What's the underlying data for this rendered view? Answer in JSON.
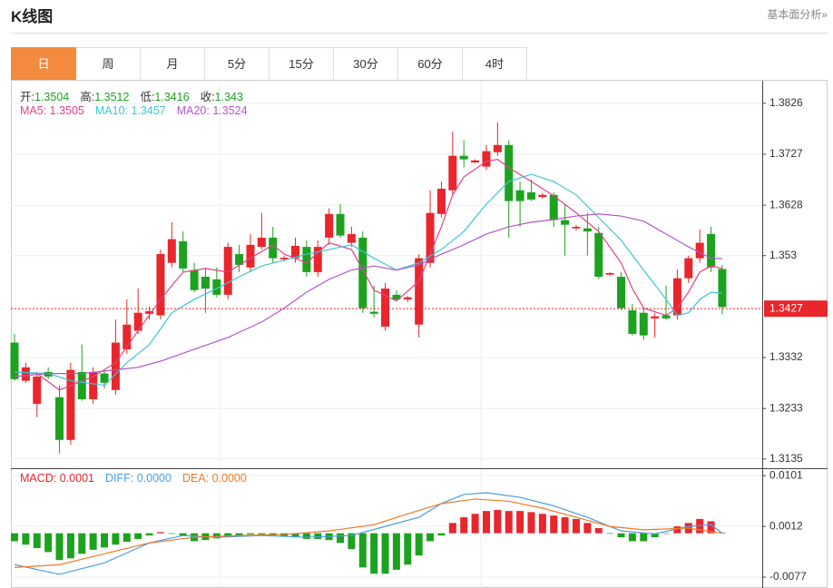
{
  "chart_data": {
    "type": "candlestick",
    "title": "K线图",
    "link": "基本面分析»",
    "tabs": [
      "日",
      "周",
      "月",
      "5分",
      "15分",
      "30分",
      "60分",
      "4时"
    ],
    "active_tab": 0,
    "ohlc_legend": [
      {
        "label": "开:",
        "value": 1.3504
      },
      {
        "label": "高:",
        "value": 1.3512
      },
      {
        "label": "低:",
        "value": 1.3416
      },
      {
        "label": "收:",
        "value": 1.343
      }
    ],
    "up_color": "#e8262c",
    "down_color": "#1da21f",
    "open": [
      1.3361,
      1.3287,
      1.3242,
      1.3304,
      1.3255,
      1.3172,
      1.3304,
      1.3251,
      1.3301,
      1.3269,
      1.3348,
      1.3384,
      1.3417,
      1.3414,
      1.3516,
      1.3558,
      1.3502,
      1.3489,
      1.3484,
      1.3454,
      1.3533,
      1.3507,
      1.3547,
      1.3565,
      1.3523,
      1.3525,
      1.3547,
      1.3498,
      1.3565,
      1.3611,
      1.3555,
      1.3565,
      1.3421,
      1.3392,
      1.3454,
      1.3445,
      1.3396,
      1.3516,
      1.3611,
      1.3657,
      1.3724,
      1.3711,
      1.3703,
      1.3731,
      1.3745,
      1.3657,
      1.3653,
      1.3644,
      1.3648,
      1.3599,
      1.3583,
      1.3583,
      1.3574,
      1.3493,
      1.3489,
      1.3424,
      1.3419,
      1.3408,
      1.3414,
      1.3414,
      1.3486,
      1.3525,
      1.3572,
      1.3504
    ],
    "high": [
      1.3378,
      1.3322,
      1.3304,
      1.3313,
      1.3278,
      1.3322,
      1.3357,
      1.3313,
      1.3308,
      1.3406,
      1.3445,
      1.3466,
      1.3431,
      1.3542,
      1.3595,
      1.3577,
      1.3516,
      1.3507,
      1.3507,
      1.3555,
      1.3551,
      1.3572,
      1.3613,
      1.3586,
      1.353,
      1.3565,
      1.356,
      1.356,
      1.3622,
      1.363,
      1.3586,
      1.3577,
      1.3472,
      1.3477,
      1.3463,
      1.3452,
      1.3533,
      1.3657,
      1.3674,
      1.3771,
      1.3754,
      1.3717,
      1.3745,
      1.3789,
      1.3754,
      1.3674,
      1.3678,
      1.3652,
      1.3653,
      1.363,
      1.359,
      1.3613,
      1.3586,
      1.3498,
      1.3498,
      1.3436,
      1.3428,
      1.3419,
      1.3472,
      1.3503,
      1.353,
      1.3581,
      1.3586,
      1.3512
    ],
    "low": [
      1.3287,
      1.3283,
      1.3216,
      1.329,
      1.3146,
      1.3163,
      1.3248,
      1.3242,
      1.3272,
      1.326,
      1.3339,
      1.3378,
      1.3406,
      1.3406,
      1.3507,
      1.3498,
      1.3459,
      1.3419,
      1.3449,
      1.3445,
      1.3498,
      1.3498,
      1.3542,
      1.3516,
      1.3519,
      1.3516,
      1.3489,
      1.3489,
      1.3551,
      1.3565,
      1.3547,
      1.3419,
      1.341,
      1.3384,
      1.3442,
      1.344,
      1.3371,
      1.3507,
      1.3604,
      1.3648,
      1.3701,
      1.371,
      1.3696,
      1.3724,
      1.3565,
      1.3586,
      1.3636,
      1.3641,
      1.3586,
      1.353,
      1.3579,
      1.353,
      1.3484,
      1.3491,
      1.3424,
      1.3375,
      1.3366,
      1.3371,
      1.3405,
      1.3406,
      1.3477,
      1.3516,
      1.3498,
      1.3416
    ],
    "close": [
      1.329,
      1.3313,
      1.3295,
      1.3295,
      1.3172,
      1.3308,
      1.3251,
      1.3304,
      1.3283,
      1.3361,
      1.3396,
      1.3419,
      1.3422,
      1.3533,
      1.3562,
      1.3505,
      1.3463,
      1.3466,
      1.3454,
      1.3547,
      1.3512,
      1.3551,
      1.3565,
      1.3525,
      1.3526,
      1.3549,
      1.3498,
      1.3547,
      1.3611,
      1.3569,
      1.3572,
      1.3428,
      1.3417,
      1.3466,
      1.3445,
      1.3449,
      1.3525,
      1.3613,
      1.366,
      1.3724,
      1.3717,
      1.3715,
      1.3733,
      1.3745,
      1.3636,
      1.3636,
      1.3639,
      1.3648,
      1.3599,
      1.359,
      1.3586,
      1.3577,
      1.3489,
      1.3496,
      1.3428,
      1.3378,
      1.3375,
      1.3412,
      1.3408,
      1.3486,
      1.3525,
      1.3555,
      1.3507,
      1.343
    ],
    "ylim": [
      1.3117,
      1.3868
    ],
    "yticks": [
      1.3826,
      1.3727,
      1.3628,
      1.353,
      1.3332,
      1.3233,
      1.3135
    ],
    "last_price": 1.3427,
    "last_color": "#e8262c",
    "ma": [
      {
        "label": "MA5: 1.3505",
        "color": "#e0428a",
        "x": [
          0,
          2,
          4,
          7,
          9,
          11,
          13,
          15,
          17,
          19,
          21,
          23,
          24,
          26,
          28,
          30,
          32,
          34,
          36,
          38,
          39,
          40,
          42,
          43,
          44,
          46,
          48,
          50,
          52,
          54,
          55,
          56,
          58,
          59,
          60,
          61,
          62,
          63
        ],
        "values": [
          1.3304,
          1.3301,
          1.3269,
          1.3295,
          1.3322,
          1.3384,
          1.3445,
          1.3498,
          1.3505,
          1.3498,
          1.3525,
          1.3551,
          1.3533,
          1.3516,
          1.3555,
          1.3542,
          1.3463,
          1.3442,
          1.348,
          1.3586,
          1.3648,
          1.3683,
          1.3713,
          1.3717,
          1.3701,
          1.3674,
          1.3646,
          1.3613,
          1.3577,
          1.3516,
          1.3466,
          1.3428,
          1.3414,
          1.3428,
          1.3459,
          1.3498,
          1.351,
          1.3505
        ]
      },
      {
        "label": "MA10: 1.3457",
        "color": "#3cc4d8",
        "x": [
          0,
          3,
          5,
          8,
          10,
          12,
          14,
          16,
          18,
          20,
          22,
          24,
          26,
          28,
          30,
          32,
          34,
          36,
          38,
          40,
          42,
          44,
          46,
          48,
          50,
          52,
          54,
          56,
          58,
          59,
          60,
          61,
          62,
          63
        ],
        "values": [
          1.3304,
          1.3301,
          1.3287,
          1.3278,
          1.3322,
          1.3357,
          1.3419,
          1.3445,
          1.3466,
          1.3489,
          1.351,
          1.3521,
          1.3533,
          1.3542,
          1.3551,
          1.3525,
          1.3502,
          1.3516,
          1.3542,
          1.3577,
          1.363,
          1.3674,
          1.3688,
          1.3674,
          1.3648,
          1.3604,
          1.356,
          1.3502,
          1.3445,
          1.3414,
          1.3419,
          1.3445,
          1.3459,
          1.3457
        ]
      },
      {
        "label": "MA20: 1.3524",
        "color": "#b058c8",
        "x": [
          0,
          3,
          6,
          9,
          11,
          13,
          16,
          19,
          22,
          24,
          26,
          28,
          30,
          32,
          34,
          36,
          38,
          40,
          42,
          44,
          46,
          48,
          50,
          52,
          54,
          56,
          58,
          60,
          62,
          63
        ],
        "values": [
          1.3295,
          1.3301,
          1.3301,
          1.3308,
          1.3313,
          1.3325,
          1.3348,
          1.3371,
          1.3401,
          1.3428,
          1.3459,
          1.3484,
          1.3502,
          1.351,
          1.3502,
          1.3512,
          1.3533,
          1.3551,
          1.3572,
          1.3586,
          1.3595,
          1.36,
          1.3607,
          1.3611,
          1.3607,
          1.3597,
          1.3572,
          1.3547,
          1.3525,
          1.3524
        ]
      }
    ],
    "macd": {
      "label": "MACD: 0.0001",
      "color": "#e8262c",
      "ylim": [
        -0.0096,
        0.0114
      ],
      "yticks": [
        0.0101,
        0.0012,
        -0.0077
      ],
      "bars": [
        -0.0014,
        -0.002,
        -0.0026,
        -0.0033,
        -0.0047,
        -0.0044,
        -0.0036,
        -0.0029,
        -0.0025,
        -0.002,
        -0.0015,
        -0.001,
        -0.0004,
        0.0002,
        -0.0001,
        -0.0004,
        -0.0014,
        -0.0012,
        -0.0009,
        -0.0007,
        -0.0004,
        -0.0002,
        -0.0002,
        -0.0004,
        -0.0006,
        -0.0007,
        -0.001,
        -0.001,
        -0.0012,
        -0.0017,
        -0.0028,
        -0.006,
        -0.0071,
        -0.0071,
        -0.0064,
        -0.0055,
        -0.0039,
        -0.0014,
        -0.0004,
        0.0018,
        0.0028,
        0.0034,
        0.0039,
        0.0041,
        0.0039,
        0.0039,
        0.0037,
        0.0034,
        0.0031,
        0.0028,
        0.0025,
        0.0018,
        0.0009,
        -0.0001,
        -0.0007,
        -0.0014,
        -0.0014,
        -0.0007,
        -0.0001,
        0.0012,
        0.0018,
        0.0025,
        0.0021,
        0.0001
      ],
      "lines": [
        {
          "label": "DIFF: 0.0000",
          "color": "#4a9ee0",
          "x": [
            0,
            4,
            8,
            12,
            15,
            18,
            22,
            26,
            30,
            33,
            36,
            38,
            40,
            42,
            45,
            48,
            51,
            54,
            57,
            60,
            62,
            63
          ],
          "values": [
            -0.0055,
            -0.0072,
            -0.0052,
            -0.0017,
            -0.0004,
            -0.0007,
            -0.0004,
            -0.0007,
            -0.0004,
            0.0012,
            0.0028,
            0.0052,
            0.0068,
            0.0071,
            0.0063,
            0.0048,
            0.0028,
            0.0004,
            -0.0001,
            0.0012,
            0.0015,
            0
          ]
        },
        {
          "label": "DEA: 0.0000",
          "color": "#f07a28",
          "x": [
            0,
            4,
            8,
            12,
            16,
            20,
            24,
            28,
            32,
            35,
            38,
            41,
            44,
            47,
            50,
            53,
            56,
            60,
            63
          ],
          "values": [
            -0.006,
            -0.0055,
            -0.0036,
            -0.0017,
            -0.0007,
            -0.0004,
            -0.0002,
            0.0004,
            0.0015,
            0.0034,
            0.0052,
            0.006,
            0.0056,
            0.0044,
            0.0028,
            0.0012,
            0.0006,
            0.0009,
            0
          ]
        }
      ]
    }
  }
}
